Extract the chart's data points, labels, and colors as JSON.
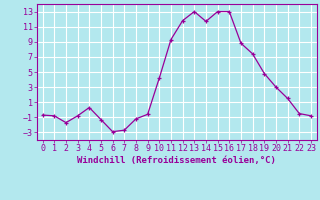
{
  "x": [
    0,
    1,
    2,
    3,
    4,
    5,
    6,
    7,
    8,
    9,
    10,
    11,
    12,
    13,
    14,
    15,
    16,
    17,
    18,
    19,
    20,
    21,
    22,
    23
  ],
  "y": [
    -0.7,
    -0.8,
    -1.7,
    -0.8,
    0.3,
    -1.3,
    -2.9,
    -2.7,
    -1.2,
    -0.6,
    4.2,
    9.3,
    11.8,
    13.0,
    11.7,
    13.0,
    13.0,
    8.8,
    7.4,
    4.8,
    3.0,
    1.5,
    -0.5,
    -0.8
  ],
  "line_color": "#990099",
  "marker": "+",
  "bg_color": "#b3e8ee",
  "grid_color": "#ffffff",
  "xlabel": "Windchill (Refroidissement éolien,°C)",
  "xlabel_color": "#990099",
  "xlabel_fontsize": 6.5,
  "tick_color": "#990099",
  "tick_fontsize": 6,
  "ylim": [
    -4,
    14
  ],
  "yticks": [
    -3,
    -1,
    1,
    3,
    5,
    7,
    9,
    11,
    13
  ],
  "xlim": [
    -0.5,
    23.5
  ],
  "xticks": [
    0,
    1,
    2,
    3,
    4,
    5,
    6,
    7,
    8,
    9,
    10,
    11,
    12,
    13,
    14,
    15,
    16,
    17,
    18,
    19,
    20,
    21,
    22,
    23
  ]
}
